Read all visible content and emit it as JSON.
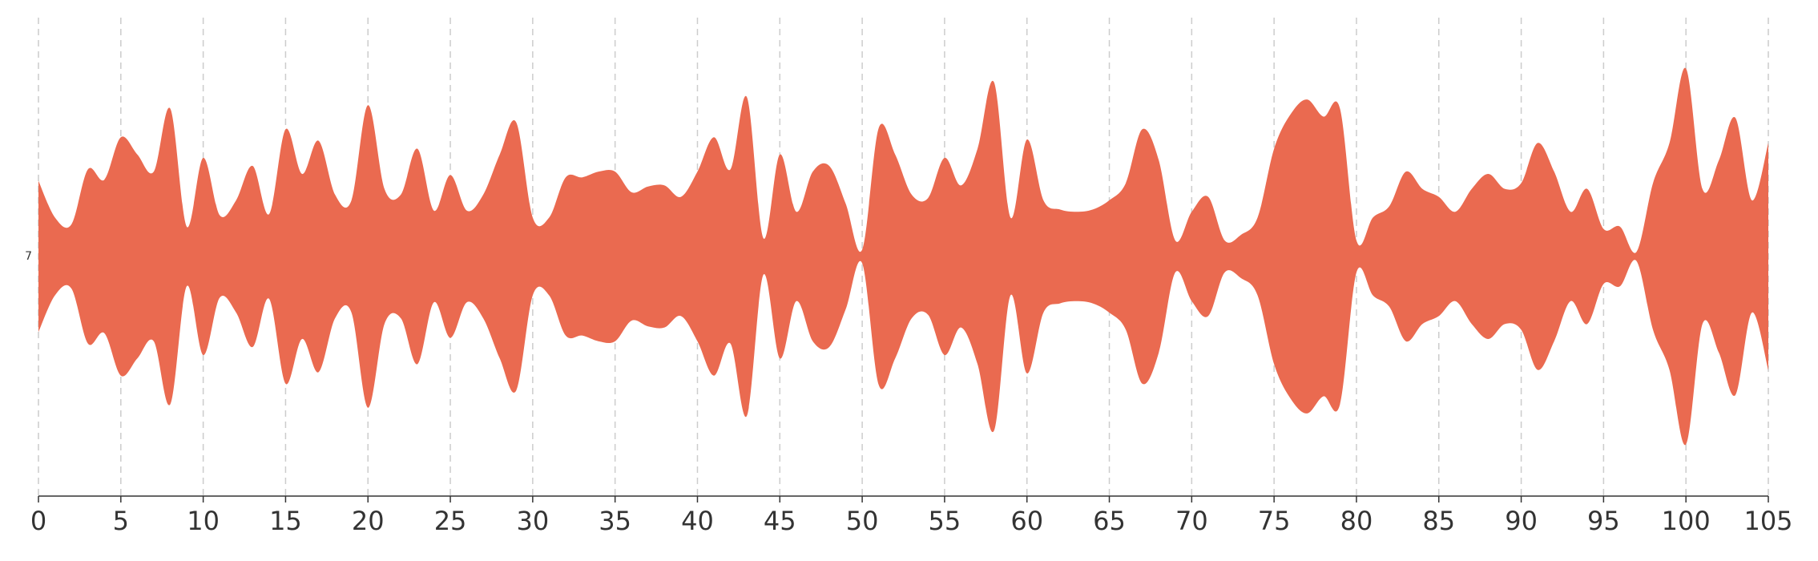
{
  "chart_data": {
    "type": "themeRiver",
    "x": [
      0,
      1,
      2,
      3,
      4,
      5,
      6,
      7,
      8,
      9,
      10,
      11,
      12,
      13,
      14,
      15,
      16,
      17,
      18,
      19,
      20,
      21,
      22,
      23,
      24,
      25,
      26,
      27,
      28,
      29,
      30,
      31,
      32,
      33,
      34,
      35,
      36,
      37,
      38,
      39,
      40,
      41,
      42,
      43,
      44,
      45,
      46,
      47,
      48,
      49,
      50,
      51,
      52,
      53,
      54,
      55,
      56,
      57,
      58,
      59,
      60,
      61,
      62,
      63,
      64,
      65,
      66,
      67,
      68,
      69,
      70,
      71,
      72,
      73,
      74,
      75,
      76,
      77,
      78,
      79,
      80,
      81,
      82,
      83,
      84,
      85,
      86,
      87,
      88,
      89,
      90,
      91,
      92,
      93,
      94,
      95,
      96,
      97,
      98,
      99,
      100,
      101,
      102,
      103,
      104,
      105
    ],
    "series": [
      {
        "name": "7",
        "color": "#ea6a50",
        "values": [
          66,
          34,
          28,
          76,
          67,
          104,
          89,
          74,
          129,
          26,
          86,
          36,
          49,
          79,
          37,
          111,
          72,
          101,
          54,
          49,
          132,
          59,
          54,
          94,
          40,
          71,
          40,
          54,
          89,
          117,
          34,
          34,
          69,
          69,
          74,
          74,
          56,
          61,
          62,
          52,
          74,
          104,
          76,
          139,
          16,
          89,
          39,
          74,
          79,
          46,
          6,
          112,
          89,
          54,
          51,
          86,
          62,
          94,
          152,
          34,
          102,
          49,
          41,
          39,
          41,
          49,
          64,
          111,
          84,
          14,
          39,
          52,
          14,
          19,
          34,
          94,
          124,
          137,
          122,
          129,
          14,
          34,
          44,
          74,
          59,
          52,
          39,
          59,
          72,
          59,
          64,
          99,
          74,
          39,
          59,
          24,
          26,
          4,
          64,
          99,
          164,
          59,
          84,
          121,
          49,
          99
        ]
      }
    ],
    "xlim": [
      0,
      105
    ],
    "xticks": [
      0,
      5,
      10,
      15,
      20,
      25,
      30,
      35,
      40,
      45,
      50,
      55,
      60,
      65,
      70,
      75,
      80,
      85,
      90,
      95,
      100,
      105
    ],
    "grid": true
  }
}
